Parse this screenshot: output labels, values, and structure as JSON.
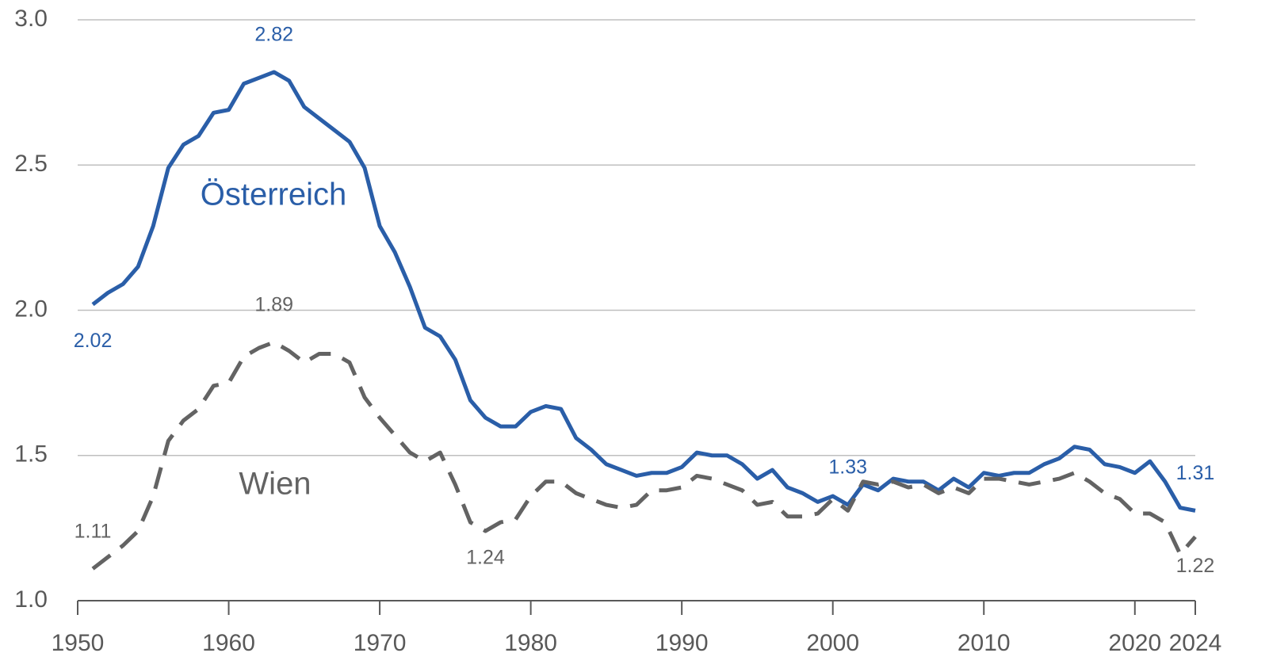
{
  "chart_data": {
    "type": "line",
    "x": [
      1951,
      1952,
      1953,
      1954,
      1955,
      1956,
      1957,
      1958,
      1959,
      1960,
      1961,
      1962,
      1963,
      1964,
      1965,
      1966,
      1967,
      1968,
      1969,
      1970,
      1971,
      1972,
      1973,
      1974,
      1975,
      1976,
      1977,
      1978,
      1979,
      1980,
      1981,
      1982,
      1983,
      1984,
      1985,
      1986,
      1987,
      1988,
      1989,
      1990,
      1991,
      1992,
      1993,
      1994,
      1995,
      1996,
      1997,
      1998,
      1999,
      2000,
      2001,
      2002,
      2003,
      2004,
      2005,
      2006,
      2007,
      2008,
      2009,
      2010,
      2011,
      2012,
      2013,
      2014,
      2015,
      2016,
      2017,
      2018,
      2019,
      2020,
      2021,
      2022,
      2023,
      2024
    ],
    "series": [
      {
        "name": "Österreich",
        "color": "#2a5ea8",
        "dash": false,
        "values": [
          2.02,
          2.06,
          2.09,
          2.15,
          2.29,
          2.49,
          2.57,
          2.6,
          2.68,
          2.69,
          2.78,
          2.8,
          2.82,
          2.79,
          2.7,
          2.66,
          2.62,
          2.58,
          2.49,
          2.29,
          2.2,
          2.08,
          1.94,
          1.91,
          1.83,
          1.69,
          1.63,
          1.6,
          1.6,
          1.65,
          1.67,
          1.66,
          1.56,
          1.52,
          1.47,
          1.45,
          1.43,
          1.44,
          1.44,
          1.46,
          1.51,
          1.5,
          1.5,
          1.47,
          1.42,
          1.45,
          1.39,
          1.37,
          1.34,
          1.36,
          1.33,
          1.4,
          1.38,
          1.42,
          1.41,
          1.41,
          1.38,
          1.42,
          1.39,
          1.44,
          1.43,
          1.44,
          1.44,
          1.47,
          1.49,
          1.53,
          1.52,
          1.47,
          1.46,
          1.44,
          1.48,
          1.41,
          1.32,
          1.31
        ],
        "value_labels": [
          "2.02",
          null,
          null,
          null,
          null,
          null,
          null,
          null,
          null,
          null,
          null,
          null,
          "2.82",
          null,
          null,
          null,
          null,
          null,
          null,
          null,
          null,
          null,
          null,
          null,
          null,
          null,
          null,
          null,
          null,
          null,
          null,
          null,
          null,
          null,
          null,
          null,
          null,
          null,
          null,
          null,
          null,
          null,
          null,
          null,
          null,
          null,
          null,
          null,
          null,
          null,
          "1.33",
          null,
          null,
          null,
          null,
          null,
          null,
          null,
          null,
          null,
          null,
          null,
          null,
          null,
          null,
          null,
          null,
          null,
          null,
          null,
          null,
          null,
          null,
          "1.31"
        ]
      },
      {
        "name": "Wien",
        "color": "#636363",
        "dash": true,
        "values": [
          1.11,
          1.15,
          1.19,
          1.24,
          1.36,
          1.55,
          1.62,
          1.66,
          1.74,
          1.75,
          1.84,
          1.87,
          1.89,
          1.86,
          1.82,
          1.85,
          1.85,
          1.82,
          1.7,
          1.63,
          1.57,
          1.51,
          1.48,
          1.51,
          1.4,
          1.27,
          1.24,
          1.27,
          1.28,
          1.36,
          1.41,
          1.41,
          1.37,
          1.35,
          1.33,
          1.32,
          1.33,
          1.38,
          1.38,
          1.39,
          1.43,
          1.42,
          1.4,
          1.38,
          1.33,
          1.34,
          1.29,
          1.29,
          1.3,
          1.35,
          1.31,
          1.41,
          1.4,
          1.41,
          1.39,
          1.4,
          1.37,
          1.39,
          1.37,
          1.42,
          1.42,
          1.41,
          1.4,
          1.41,
          1.42,
          1.44,
          1.41,
          1.37,
          1.35,
          1.3,
          1.3,
          1.27,
          1.16,
          1.22
        ],
        "value_labels": [
          "1.11",
          null,
          null,
          null,
          null,
          null,
          null,
          null,
          null,
          null,
          null,
          null,
          "1.89",
          null,
          null,
          null,
          null,
          null,
          null,
          null,
          null,
          null,
          null,
          null,
          null,
          null,
          "1.24",
          null,
          null,
          null,
          null,
          null,
          null,
          null,
          null,
          null,
          null,
          null,
          null,
          null,
          null,
          null,
          null,
          null,
          null,
          null,
          null,
          null,
          null,
          null,
          null,
          null,
          null,
          null,
          null,
          null,
          null,
          null,
          null,
          null,
          null,
          null,
          null,
          null,
          null,
          null,
          null,
          null,
          null,
          null,
          null,
          null,
          null,
          "1.22"
        ]
      }
    ],
    "xlim": [
      1950,
      2024
    ],
    "xticks": [
      1950,
      1960,
      1970,
      1980,
      1990,
      2000,
      2010,
      2020,
      2024
    ],
    "ylim": [
      1.0,
      3.0
    ],
    "yticks": [
      {
        "value": 1.0,
        "label": "1.0"
      },
      1.5,
      {
        "value": 2.0,
        "label": "2.0"
      },
      2.5,
      {
        "value": 3.0,
        "label": "3.0"
      }
    ],
    "grid": true
  }
}
